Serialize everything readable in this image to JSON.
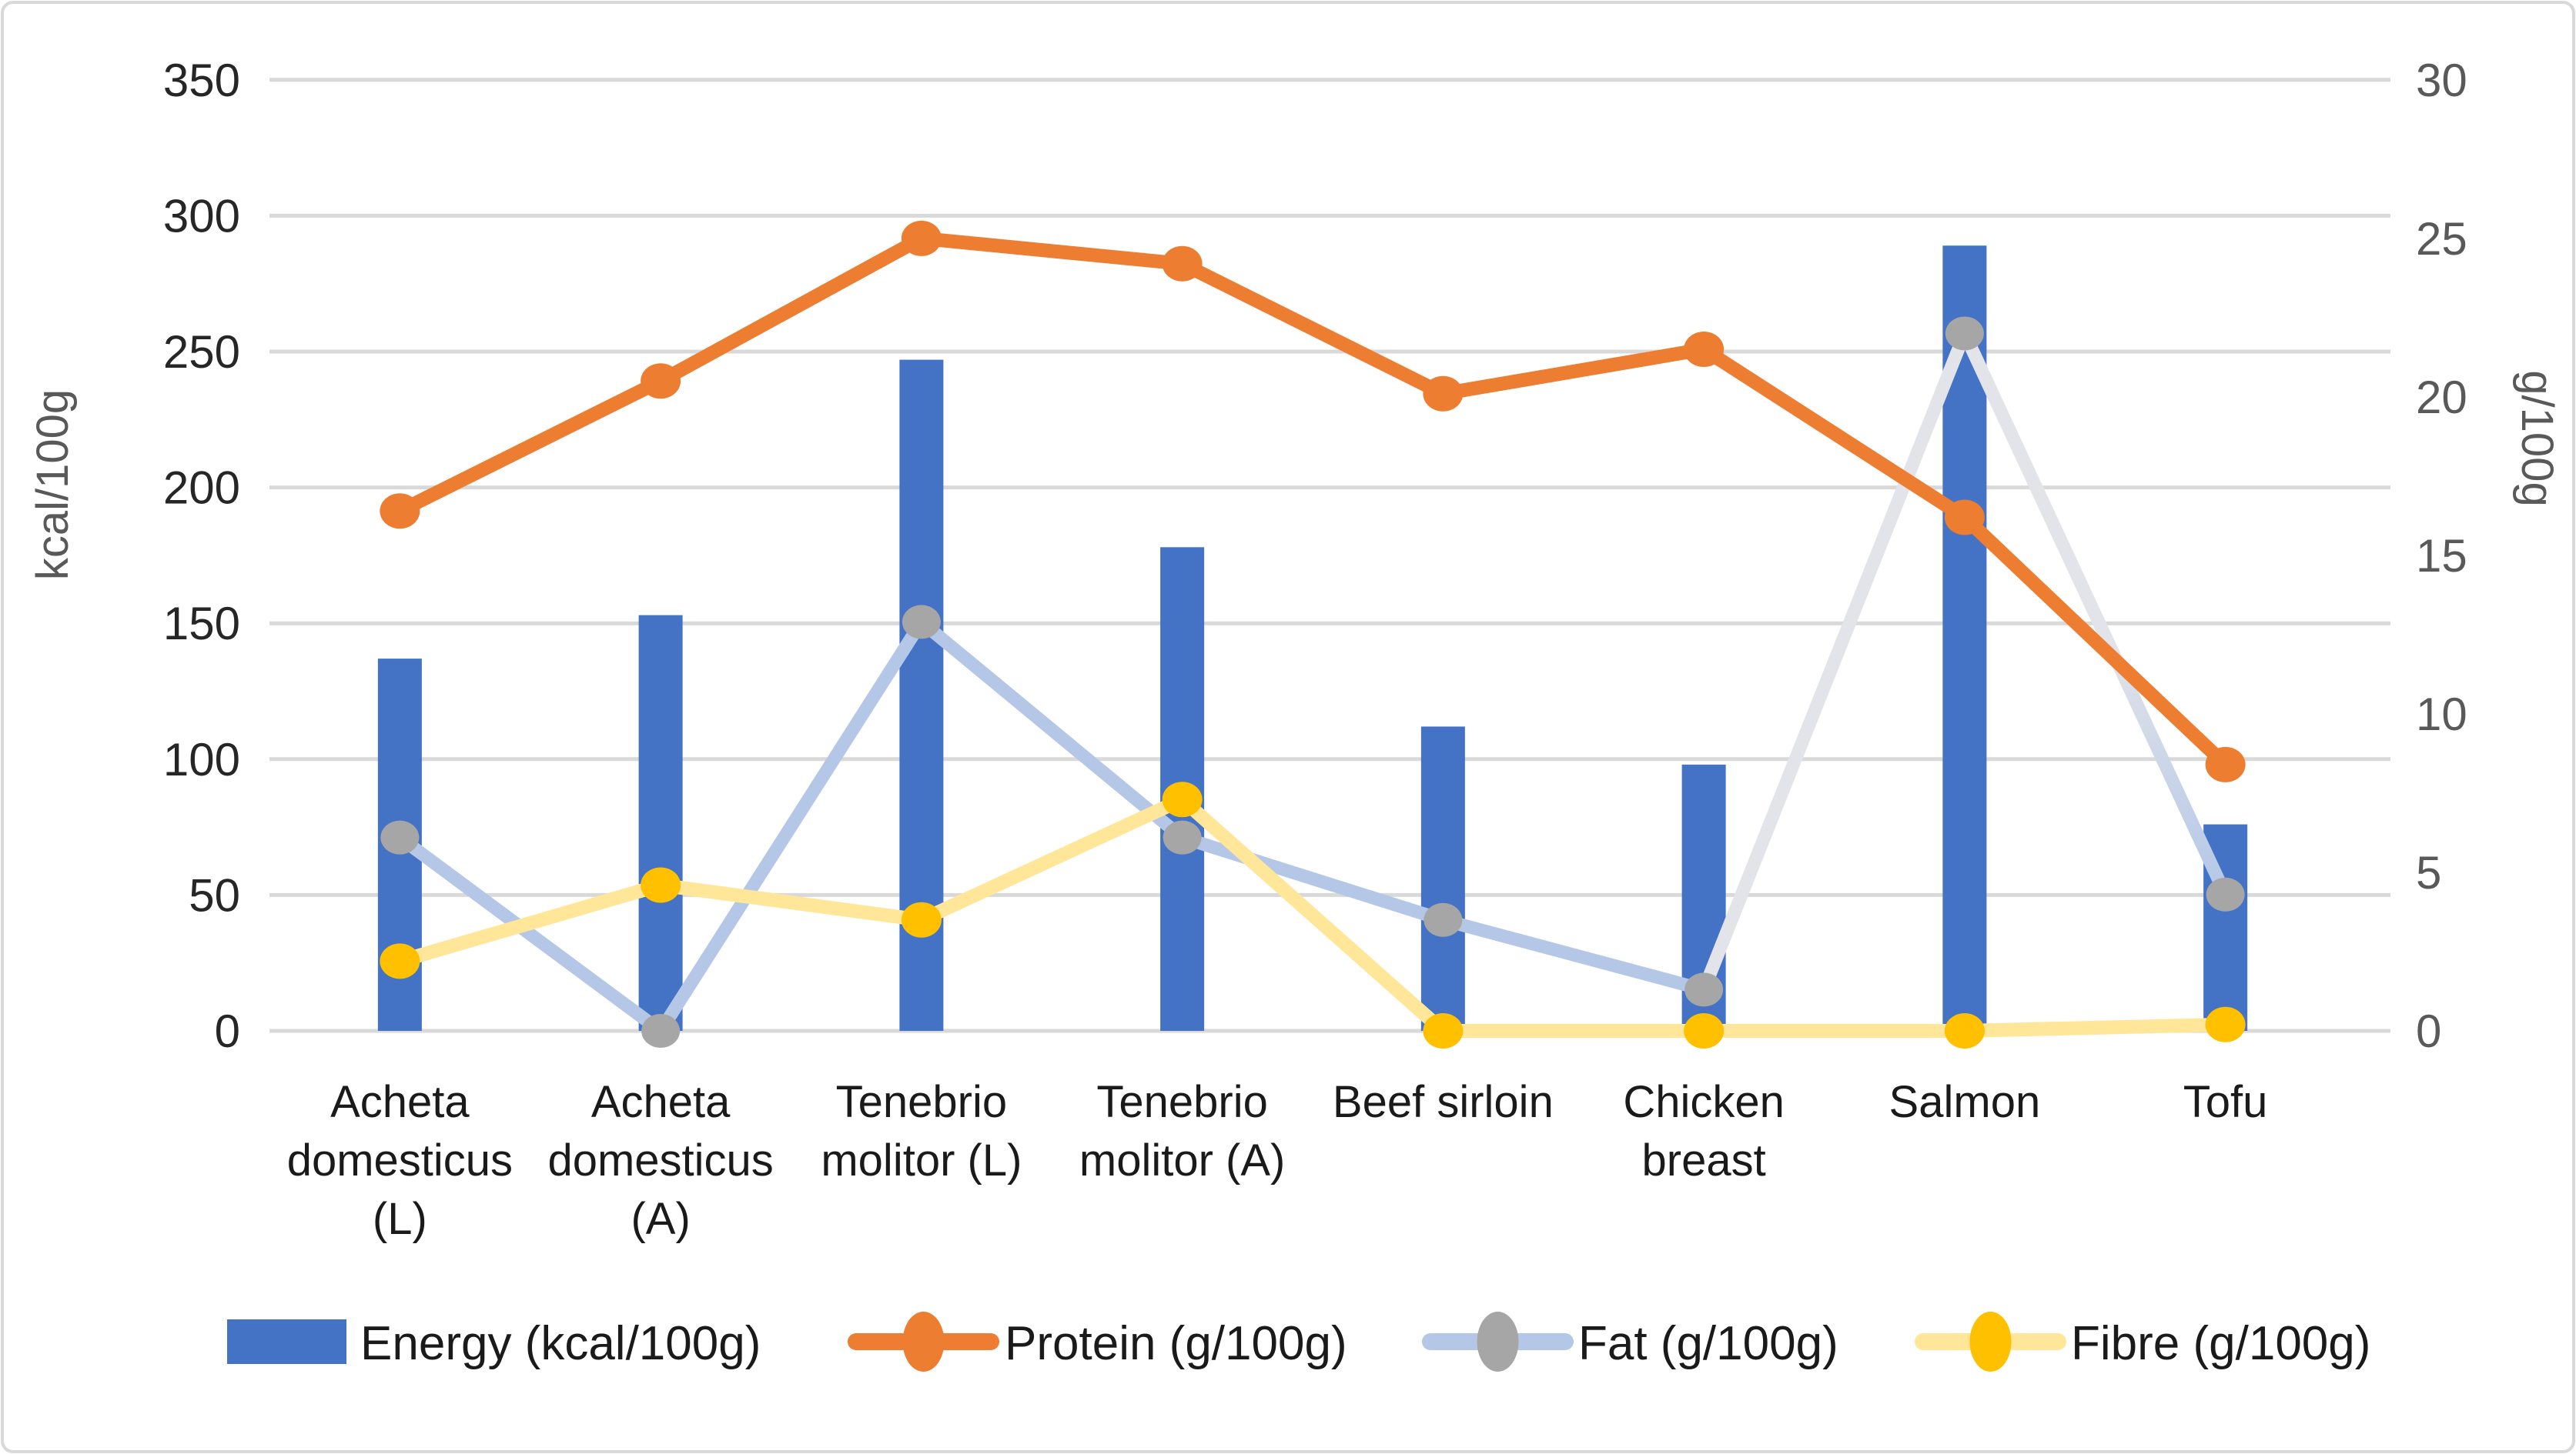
{
  "chart_data": {
    "type": "bar",
    "combo": "bar+line",
    "title": "",
    "categories": [
      "Acheta domesticus (L)",
      "Acheta domesticus (A)",
      "Tenebrio molitor (L)",
      "Tenebrio molitor (A)",
      "Beef sirloin",
      "Chicken breast",
      "Salmon",
      "Tofu"
    ],
    "category_label_lines": [
      [
        "Acheta",
        "domesticus",
        "(L)"
      ],
      [
        "Acheta",
        "domesticus",
        "(A)"
      ],
      [
        "Tenebrio",
        "molitor (L)"
      ],
      [
        "Tenebrio",
        "molitor (A)"
      ],
      [
        "Beef sirloin"
      ],
      [
        "Chicken",
        "breast"
      ],
      [
        "Salmon"
      ],
      [
        "Tofu"
      ]
    ],
    "series": [
      {
        "name": "Energy (kcal/100g)",
        "type": "bar",
        "axis": "left",
        "color": "#4472C4",
        "values": [
          137,
          153,
          247,
          178,
          112,
          98,
          289,
          76
        ]
      },
      {
        "name": "Protein (g/100g)",
        "type": "line",
        "axis": "right",
        "color": "#ED7D31",
        "marker_color": "#ED7D31",
        "values": [
          16.4,
          20.5,
          25.0,
          24.2,
          20.1,
          21.5,
          16.2,
          8.4
        ]
      },
      {
        "name": "Fat (g/100g)",
        "type": "line",
        "axis": "right",
        "color": "#B4C7E7",
        "light_color": "#E2E4E9",
        "light_segments": [
          5,
          6
        ],
        "marker_color": "#A6A6A6",
        "values": [
          6.1,
          0,
          12.9,
          6.1,
          3.5,
          1.3,
          22.0,
          4.3
        ]
      },
      {
        "name": "Fibre (g/100g)",
        "type": "line",
        "axis": "right",
        "color": "#FFE699",
        "marker_color": "#FFC000",
        "values": [
          2.2,
          4.6,
          3.5,
          7.3,
          0,
          0,
          0,
          0.2
        ]
      }
    ],
    "left_axis": {
      "title": "kcal/100g",
      "min": 0,
      "max": 350,
      "step": 50,
      "tick_labels": [
        "0",
        "50",
        "100",
        "150",
        "200",
        "250",
        "300",
        "350"
      ]
    },
    "right_axis": {
      "title": "g/100g",
      "min": 0,
      "max": 30,
      "step": 5,
      "tick_labels": [
        "0",
        "5",
        "10",
        "15",
        "20",
        "25",
        "30"
      ]
    },
    "grid": true,
    "legend_position": "bottom"
  },
  "styles": {
    "bar_color": "#4472C4",
    "protein_color": "#ED7D31",
    "fat_line_color": "#B4C7E7",
    "fat_line_light_color": "#E2E4E9",
    "fat_marker_color": "#A6A6A6",
    "fibre_line_color": "#FFE699",
    "fibre_marker_color": "#FFC000",
    "gridline_color": "#D9D9D9",
    "border_color": "#D9D9D9",
    "left_tick_color": "#262626",
    "right_tick_color": "#595959",
    "axis_title_color": "#595959",
    "category_label_color": "#1a1a1a",
    "legend_text_color": "#1a1a1a",
    "background": "#FFFFFF"
  }
}
